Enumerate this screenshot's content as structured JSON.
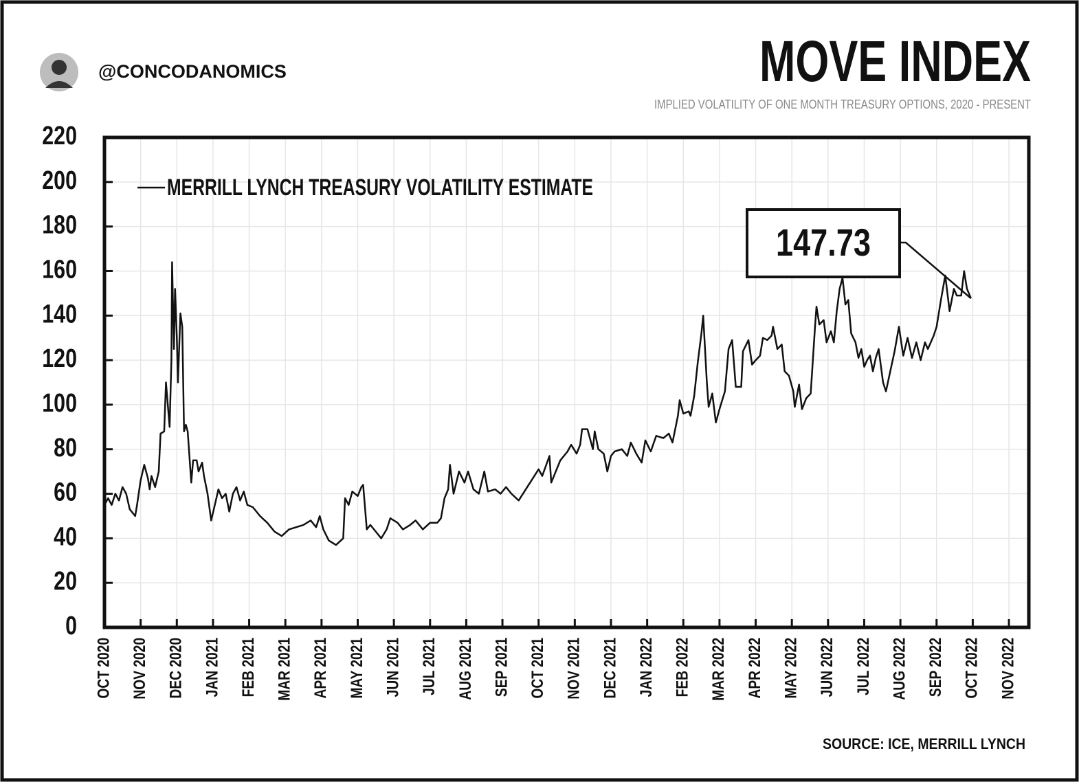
{
  "handle": "@CONCODANOMICS",
  "source": "SOURCE: ICE, MERRILL LYNCH",
  "chart_data": {
    "type": "line",
    "title": "MOVE INDEX",
    "subtitle": "IMPLIED VOLATILITY OF ONE MONTH TREASURY OPTIONS, 2020 - PRESENT",
    "annotation": "147.73",
    "grid": true,
    "legend": "top-left",
    "xlim": [
      0,
      25.55
    ],
    "xticks": [
      {
        "value": 0,
        "label": "OCT 2020"
      },
      {
        "value": 1,
        "label": "NOV 2020"
      },
      {
        "value": 2,
        "label": "DEC 2020"
      },
      {
        "value": 3,
        "label": "JAN 2021"
      },
      {
        "value": 4,
        "label": "FEB 2021"
      },
      {
        "value": 5,
        "label": "MAR 2021"
      },
      {
        "value": 6,
        "label": "APR 2021"
      },
      {
        "value": 7,
        "label": "MAY 2021"
      },
      {
        "value": 8,
        "label": "JUN 2021"
      },
      {
        "value": 9,
        "label": "JUL 2021"
      },
      {
        "value": 10,
        "label": "AUG 2021"
      },
      {
        "value": 11,
        "label": "SEP 2021"
      },
      {
        "value": 12,
        "label": "OCT 2021"
      },
      {
        "value": 13,
        "label": "NOV 2021"
      },
      {
        "value": 14,
        "label": "DEC 2021"
      },
      {
        "value": 15,
        "label": "JAN 2022"
      },
      {
        "value": 16,
        "label": "FEB 2022"
      },
      {
        "value": 17,
        "label": "MAR 2022"
      },
      {
        "value": 18,
        "label": "APR 2022"
      },
      {
        "value": 19,
        "label": "MAY 2022"
      },
      {
        "value": 20,
        "label": "JUN 2022"
      },
      {
        "value": 21,
        "label": "JUL 2022"
      },
      {
        "value": 22,
        "label": "AUG 2022"
      },
      {
        "value": 23,
        "label": "SEP 2022"
      },
      {
        "value": 24,
        "label": "OCT 2022"
      },
      {
        "value": 25,
        "label": "NOV 2022"
      }
    ],
    "ylim": [
      0,
      220
    ],
    "yticks": [
      0,
      20,
      40,
      60,
      80,
      100,
      120,
      140,
      160,
      180,
      200,
      220
    ],
    "x": [
      0,
      0.1,
      0.2,
      0.3,
      0.4,
      0.5,
      0.6,
      0.7,
      0.8,
      0.85,
      0.9,
      1.0,
      1.1,
      1.2,
      1.25,
      1.3,
      1.4,
      1.5,
      1.55,
      1.65,
      1.7,
      1.8,
      1.85,
      1.87,
      1.92,
      1.95,
      2.0,
      2.03,
      2.1,
      2.15,
      2.2,
      2.25,
      2.3,
      2.4,
      2.45,
      2.55,
      2.6,
      2.7,
      2.75,
      2.85,
      2.95,
      3.05,
      3.15,
      3.25,
      3.35,
      3.45,
      3.55,
      3.65,
      3.75,
      3.85,
      3.95,
      4.1,
      4.3,
      4.5,
      4.7,
      4.9,
      5.1,
      5.3,
      5.5,
      5.7,
      5.85,
      5.95,
      6.05,
      6.2,
      6.4,
      6.6,
      6.65,
      6.75,
      6.85,
      7.0,
      7.1,
      7.15,
      7.25,
      7.35,
      7.55,
      7.65,
      7.8,
      7.9,
      8.1,
      8.25,
      8.45,
      8.6,
      8.8,
      9.0,
      9.2,
      9.3,
      9.4,
      9.5,
      9.55,
      9.65,
      9.8,
      9.95,
      10.05,
      10.2,
      10.35,
      10.5,
      10.6,
      10.8,
      10.95,
      11.1,
      11.25,
      11.45,
      12.0,
      12.1,
      12.3,
      12.35,
      12.6,
      12.8,
      12.9,
      13.05,
      13.15,
      13.2,
      13.35,
      13.5,
      13.55,
      13.65,
      13.8,
      13.9,
      14.0,
      14.1,
      14.3,
      14.45,
      14.55,
      14.7,
      14.85,
      14.95,
      15.1,
      15.25,
      15.45,
      15.6,
      15.7,
      15.85,
      15.9,
      16.0,
      16.15,
      16.2,
      16.3,
      16.4,
      16.5,
      16.55,
      16.65,
      16.7,
      16.8,
      16.9,
      17.0,
      17.15,
      17.25,
      17.35,
      17.45,
      17.6,
      17.65,
      17.8,
      17.9,
      18.0,
      18.12,
      18.2,
      18.32,
      18.44,
      18.48,
      18.6,
      18.72,
      18.8,
      18.92,
      19.04,
      19.08,
      19.2,
      19.28,
      19.4,
      19.52,
      19.64,
      19.68,
      19.76,
      19.88,
      19.96,
      20.08,
      20.16,
      20.24,
      20.32,
      20.4,
      20.48,
      20.56,
      20.64,
      20.76,
      20.84,
      20.92,
      21.0,
      21.08,
      21.16,
      21.24,
      21.32,
      21.4,
      21.52,
      21.6,
      21.72,
      21.84,
      21.96,
      22.08,
      22.2,
      22.32,
      22.44,
      22.56,
      22.68,
      22.76,
      22.92,
      23.0,
      23.12,
      23.24,
      23.36,
      23.48,
      23.56,
      23.68,
      23.76,
      23.84,
      23.95
    ],
    "series": [
      {
        "name": "MERRILL LYNCH TREASURY VOLATILITY ESTIMATE",
        "color": "#111111",
        "values": [
          55,
          58,
          55,
          60,
          57,
          63,
          60,
          53,
          51,
          50,
          55,
          66,
          73,
          67,
          62,
          68,
          63,
          70,
          87,
          88,
          110,
          90,
          120,
          164,
          125,
          152,
          130,
          110,
          141,
          135,
          88,
          91,
          88,
          65,
          75,
          75,
          70,
          74,
          68,
          60,
          48,
          55,
          62,
          58,
          60,
          52,
          60,
          63,
          57,
          61,
          55,
          54,
          50,
          47,
          43,
          41,
          44,
          45,
          46,
          48,
          45,
          50,
          44,
          39,
          37,
          40,
          58,
          55,
          61,
          59,
          63,
          64,
          44,
          46,
          42,
          40,
          44,
          49,
          47,
          44,
          46,
          48,
          44,
          47,
          47,
          49,
          58,
          62,
          73,
          60,
          70,
          65,
          70,
          62,
          60,
          70,
          61,
          62,
          60,
          63,
          60,
          57,
          71,
          68,
          77,
          65,
          75,
          79,
          82,
          78,
          82,
          89,
          89,
          80,
          88,
          80,
          78,
          70,
          77,
          79,
          80,
          77,
          83,
          78,
          74,
          84,
          79,
          86,
          85,
          87,
          83,
          95,
          102,
          96,
          97,
          95,
          104,
          119,
          132,
          140,
          110,
          99,
          105,
          92,
          98,
          106,
          125,
          129,
          108,
          108,
          124,
          129,
          118,
          120,
          122,
          130,
          129,
          131,
          135,
          125,
          127,
          115,
          113,
          106,
          99,
          109,
          98,
          103,
          105,
          135,
          144,
          136,
          138,
          128,
          133,
          128,
          142,
          152,
          157,
          145,
          147,
          132,
          128,
          121,
          125,
          117,
          120,
          122,
          115,
          121,
          125,
          110,
          106,
          115,
          124,
          135,
          122,
          130,
          121,
          128,
          120,
          128,
          125,
          131,
          135,
          147,
          158,
          142,
          152,
          149,
          149,
          160,
          152,
          147.73
        ]
      }
    ]
  }
}
